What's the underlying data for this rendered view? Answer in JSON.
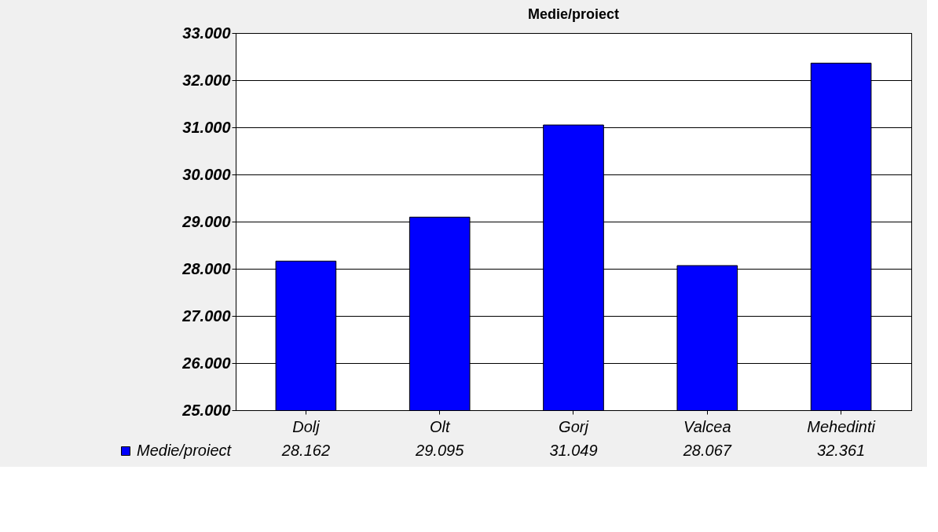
{
  "chart_data": {
    "type": "bar",
    "title": "Medie/proiect",
    "categories": [
      "Dolj",
      "Olt",
      "Gorj",
      "Valcea",
      "Mehedinti"
    ],
    "series": [
      {
        "name": "Medie/proiect",
        "color": "#0000ff",
        "values": [
          28162,
          29095,
          31049,
          28067,
          32361
        ],
        "value_labels": [
          "28.162",
          "29.095",
          "31.049",
          "28.067",
          "32.361"
        ]
      }
    ],
    "ylim": [
      25000,
      33000
    ],
    "yticks": [
      {
        "value": 25000,
        "label": "25.000"
      },
      {
        "value": 26000,
        "label": "26.000"
      },
      {
        "value": 27000,
        "label": "27.000"
      },
      {
        "value": 28000,
        "label": "28.000"
      },
      {
        "value": 29000,
        "label": "29.000"
      },
      {
        "value": 30000,
        "label": "30.000"
      },
      {
        "value": 31000,
        "label": "31.000"
      },
      {
        "value": 32000,
        "label": "32.000"
      },
      {
        "value": 33000,
        "label": "33.000"
      }
    ],
    "grid": "y",
    "legend": "bottom left"
  }
}
